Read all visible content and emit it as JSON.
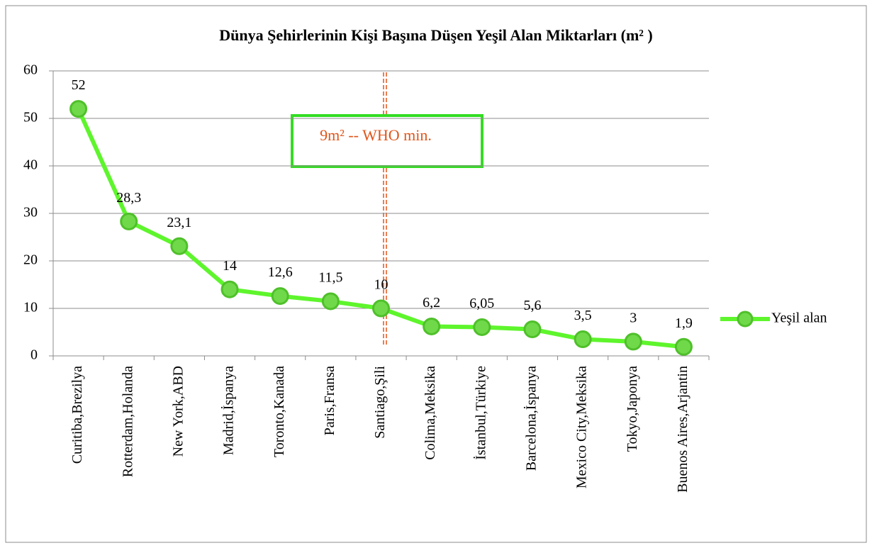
{
  "chart_data": {
    "type": "line",
    "title": "Dünya Şehirlerinin Kişi Başına Düşen Yeşil Alan Miktarları (m² )",
    "categories": [
      "Curitiba,Brezilya",
      "Rotterdam,Holanda",
      "New York,ABD",
      "Madrid,İspanya",
      "Toronto,Kanada",
      "Paris,Fransa",
      "Santiago,Şili",
      "Colima,Meksika",
      "İstanbul,Türkiye",
      "Barcelona,İspanya",
      "Mexico City,Meksika",
      "Tokyo,Japonya",
      "Buenos Aires,Arjantin"
    ],
    "series": [
      {
        "name": "Yeşil alan",
        "color": "#5ef52c",
        "values": [
          52,
          28.3,
          23.1,
          14,
          12.6,
          11.5,
          10,
          6.2,
          6.05,
          5.6,
          3.5,
          3,
          1.9
        ],
        "value_labels": [
          "52",
          "28,3",
          "23,1",
          "14",
          "12,6",
          "11,5",
          "10",
          "6,2",
          "6,05",
          "5,6",
          "3,5",
          "3",
          "1,9"
        ]
      }
    ],
    "ylim": [
      0,
      60
    ],
    "yticks": [
      0,
      10,
      20,
      30,
      40,
      50,
      60
    ],
    "grid": true,
    "legend": "right",
    "annotation": "9m² -- WHO min."
  }
}
